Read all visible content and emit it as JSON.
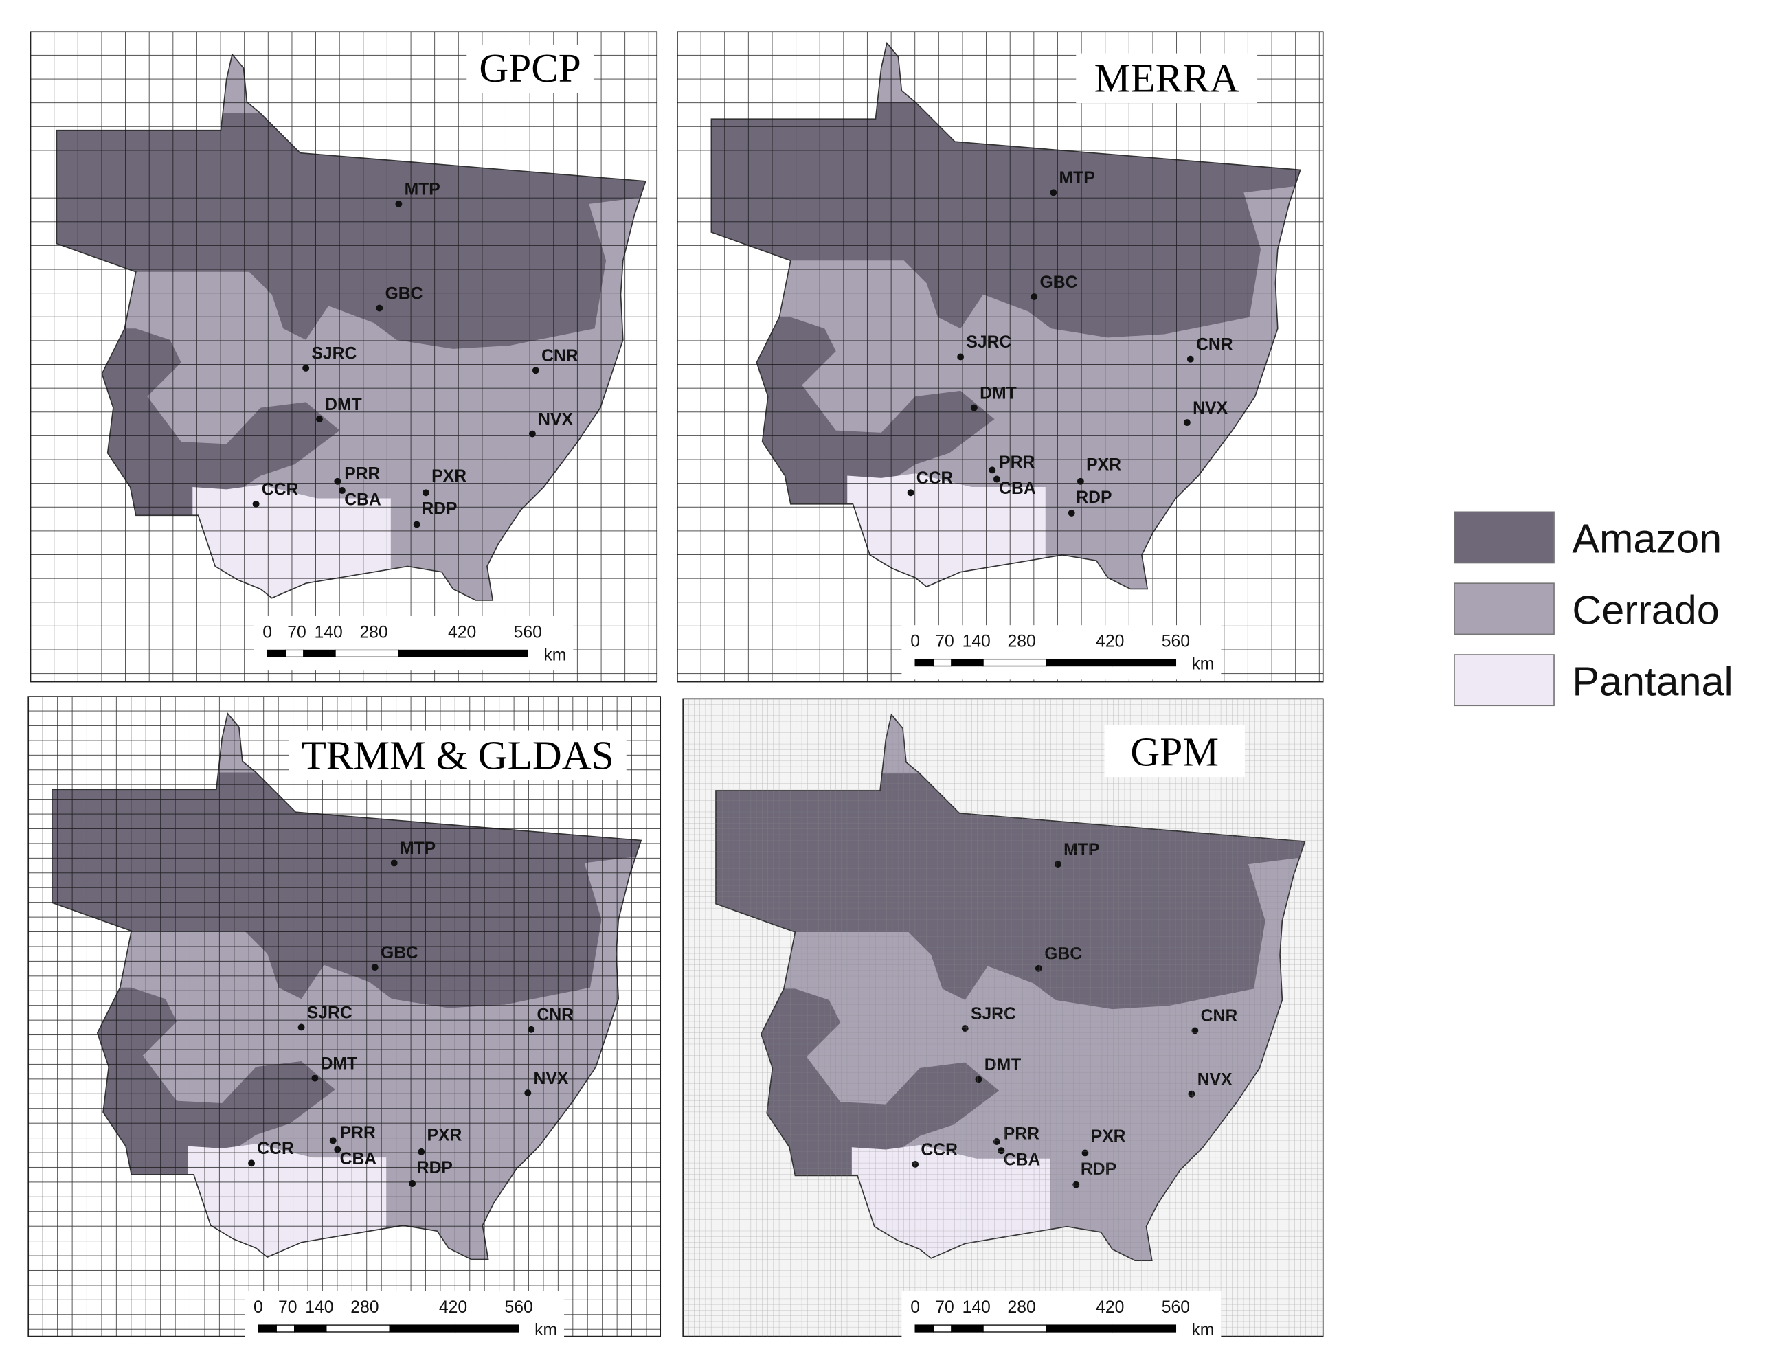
{
  "panels": [
    {
      "title": "GPCP"
    },
    {
      "title": "MERRA"
    },
    {
      "title": "TRMM & GLDAS"
    },
    {
      "title": "GPM"
    }
  ],
  "stations": [
    {
      "label": "MTP"
    },
    {
      "label": "GBC"
    },
    {
      "label": "SJRC"
    },
    {
      "label": "CNR"
    },
    {
      "label": "DMT"
    },
    {
      "label": "NVX"
    },
    {
      "label": "CCR"
    },
    {
      "label": "PRR"
    },
    {
      "label": "CBA"
    },
    {
      "label": "PXR"
    },
    {
      "label": "RDP"
    }
  ],
  "scale_bar": {
    "labels": [
      "0",
      "70",
      "140",
      "280",
      "420",
      "560"
    ],
    "unit": "km"
  },
  "legend": [
    {
      "label": "Amazon",
      "color": "#6e6878"
    },
    {
      "label": "Cerrado",
      "color": "#a9a3b4"
    },
    {
      "label": "Pantanal",
      "color": "#eee9f5"
    }
  ]
}
